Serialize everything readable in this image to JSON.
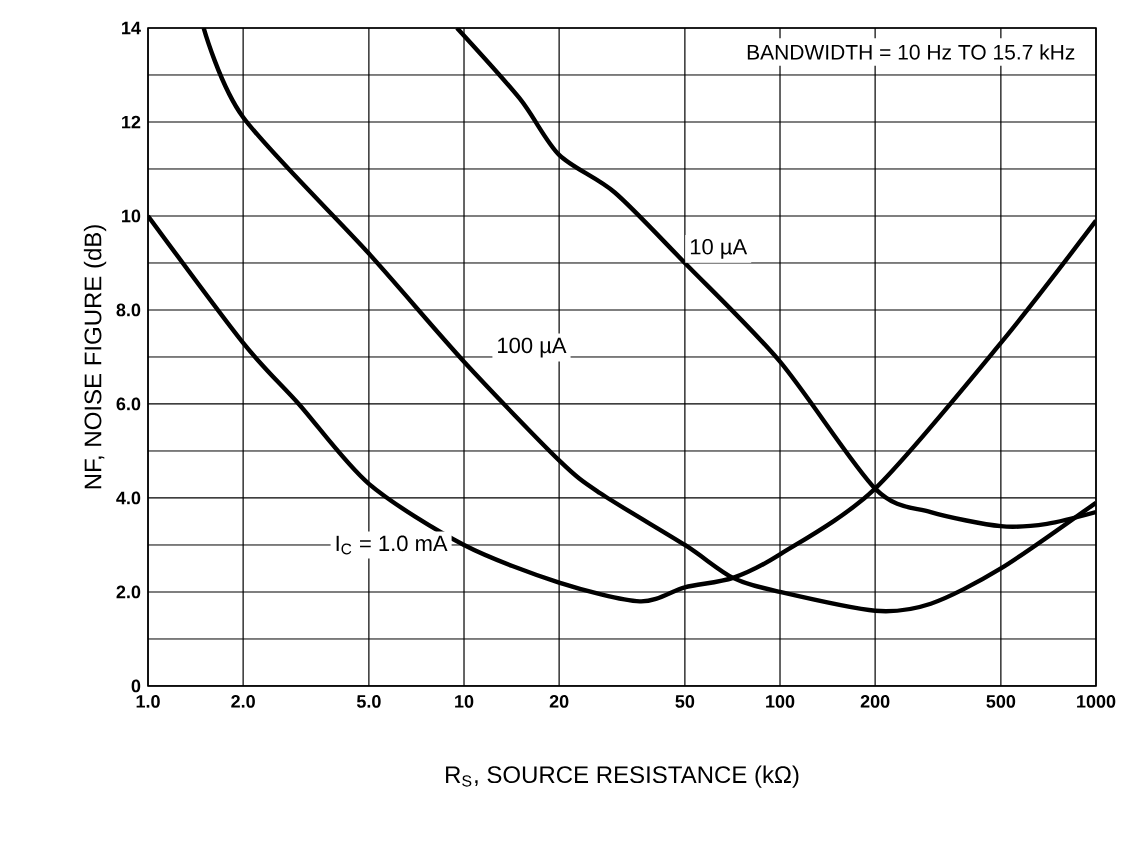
{
  "chart_data": {
    "type": "line",
    "xlabel": "R$_{S}$, SOURCE RESISTANCE (kΩ)",
    "ylabel": "NF, NOISE FIGURE (dB)",
    "annotations": [
      "BANDWIDTH = 10 Hz TO 15.7 kHz"
    ],
    "log": "x",
    "grid": true,
    "legend": false,
    "marker": "none",
    "line_style": "solid",
    "xlim": [
      1,
      1000
    ],
    "ylim": [
      0,
      14
    ],
    "xticks": [
      {
        "value": 1,
        "label": "1.0"
      },
      {
        "value": 2,
        "label": "2.0"
      },
      {
        "value": 5,
        "label": "5.0"
      },
      10,
      20,
      50,
      100,
      200,
      500,
      1000
    ],
    "yticks": [
      0,
      {
        "value": 2,
        "label": "2.0"
      },
      {
        "value": 4,
        "label": "4.0"
      },
      {
        "value": 6,
        "label": "6.0"
      },
      {
        "value": 8,
        "label": "8.0"
      },
      10,
      12,
      14
    ],
    "series": [
      {
        "name": "I$_{C}$ = 1.0 mA",
        "color": "#000000",
        "x": [
          1,
          2,
          3,
          5,
          10,
          20,
          36,
          50,
          71,
          100,
          200,
          500,
          1000
        ],
        "values": [
          10,
          7.3,
          6.0,
          4.3,
          3.0,
          2.2,
          1.8,
          2.1,
          2.3,
          2.8,
          4.2,
          7.3,
          9.9
        ]
      },
      {
        "name": "100 µA",
        "color": "#000000",
        "x": [
          1.5,
          2,
          5,
          10,
          20,
          27,
          50,
          71,
          100,
          200,
          300,
          500,
          1000
        ],
        "values": [
          14,
          12.1,
          9.2,
          6.9,
          4.8,
          4.1,
          3.0,
          2.3,
          2.0,
          1.6,
          1.75,
          2.5,
          3.9
        ]
      },
      {
        "name": "10 µA",
        "color": "#000000",
        "x": [
          9.5,
          15,
          20,
          30,
          50,
          100,
          200,
          300,
          500,
          700,
          1000
        ],
        "values": [
          14,
          12.5,
          11.3,
          10.5,
          9.0,
          6.9,
          4.2,
          3.7,
          3.4,
          3.45,
          3.7
        ]
      }
    ]
  }
}
